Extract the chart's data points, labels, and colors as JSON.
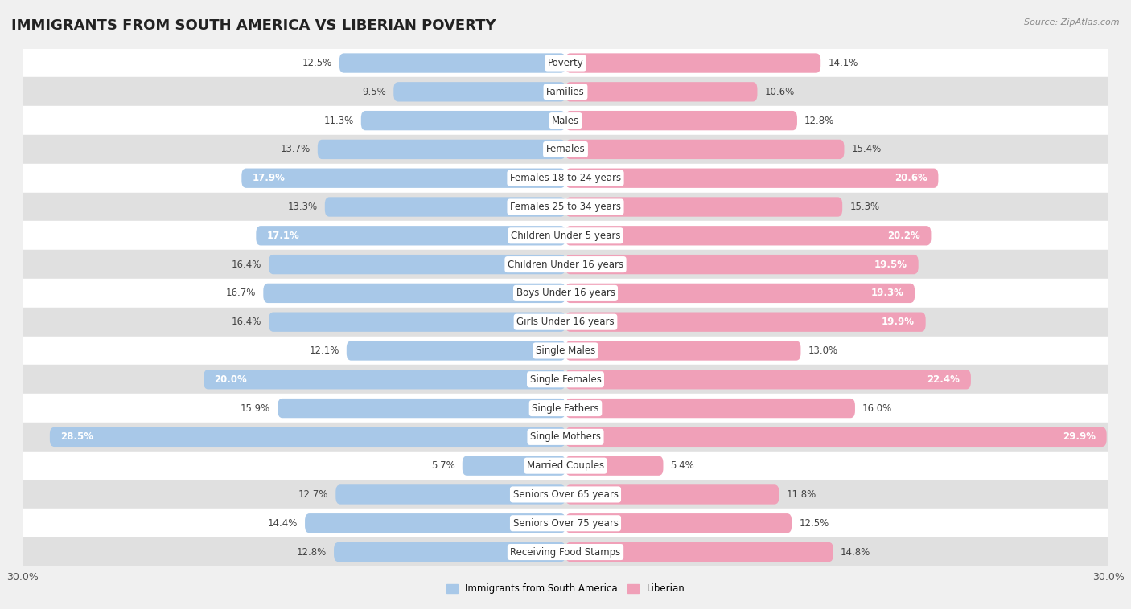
{
  "title": "IMMIGRANTS FROM SOUTH AMERICA VS LIBERIAN POVERTY",
  "source": "Source: ZipAtlas.com",
  "categories": [
    "Poverty",
    "Families",
    "Males",
    "Females",
    "Females 18 to 24 years",
    "Females 25 to 34 years",
    "Children Under 5 years",
    "Children Under 16 years",
    "Boys Under 16 years",
    "Girls Under 16 years",
    "Single Males",
    "Single Females",
    "Single Fathers",
    "Single Mothers",
    "Married Couples",
    "Seniors Over 65 years",
    "Seniors Over 75 years",
    "Receiving Food Stamps"
  ],
  "left_values": [
    12.5,
    9.5,
    11.3,
    13.7,
    17.9,
    13.3,
    17.1,
    16.4,
    16.7,
    16.4,
    12.1,
    20.0,
    15.9,
    28.5,
    5.7,
    12.7,
    14.4,
    12.8
  ],
  "right_values": [
    14.1,
    10.6,
    12.8,
    15.4,
    20.6,
    15.3,
    20.2,
    19.5,
    19.3,
    19.9,
    13.0,
    22.4,
    16.0,
    29.9,
    5.4,
    11.8,
    12.5,
    14.8
  ],
  "left_color": "#a8c8e8",
  "right_color": "#f0a0b8",
  "left_label": "Immigrants from South America",
  "right_label": "Liberian",
  "bar_height": 0.68,
  "xlim": 30.0,
  "bg_color": "#f0f0f0",
  "row_white": "#ffffff",
  "row_gray": "#e0e0e0",
  "title_fontsize": 13,
  "label_fontsize": 8.5,
  "value_fontsize": 8.5,
  "axis_label_fontsize": 9,
  "inside_label_threshold": 17.0
}
